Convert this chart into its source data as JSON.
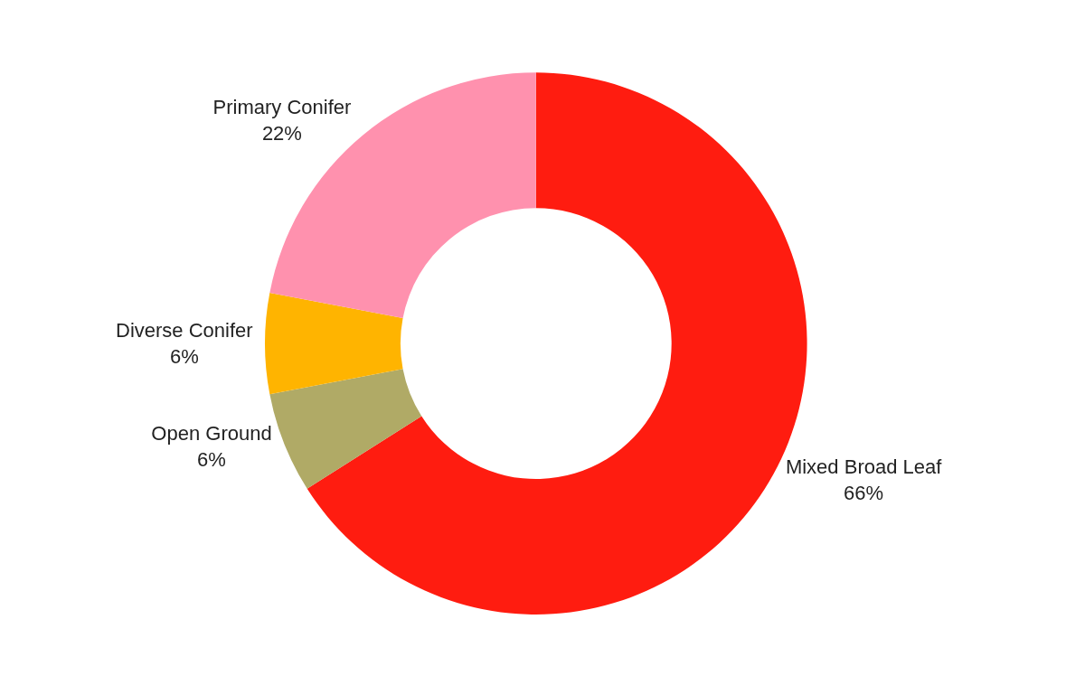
{
  "chart_data": {
    "type": "donut",
    "categories": [
      "Mixed Broad Leaf",
      "Open Ground",
      "Diverse Conifer",
      "Primary Conifer"
    ],
    "values": [
      66,
      6,
      6,
      22
    ],
    "value_labels": [
      "66%",
      "6%",
      "6%",
      "22%"
    ],
    "colors": [
      "#ff1c10",
      "#b0aa66",
      "#ffb400",
      "#ff91ae"
    ],
    "legend": false
  }
}
